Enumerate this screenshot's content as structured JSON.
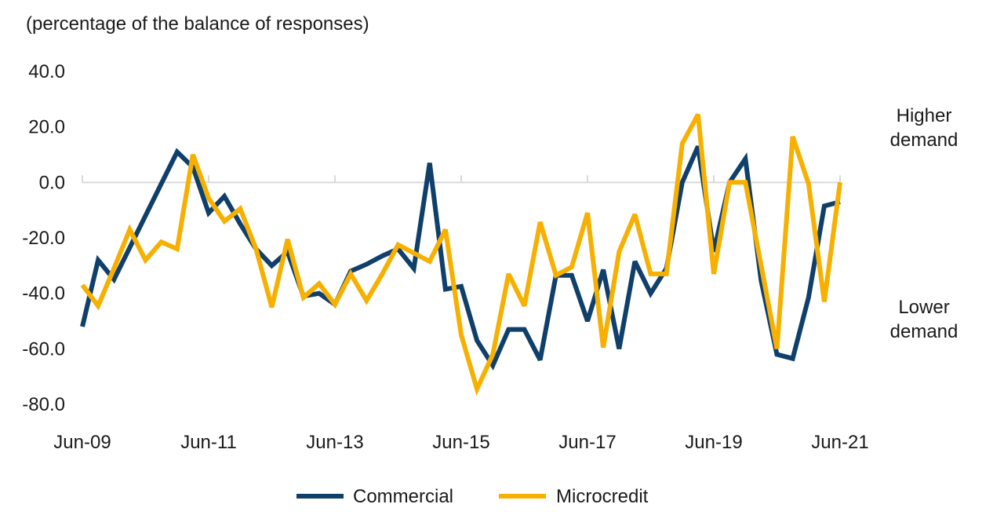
{
  "chart_data": {
    "type": "line",
    "title": "",
    "subtitle": "(percentage of the balance of responses)",
    "xlabel": "",
    "ylabel": "",
    "ylim": [
      -80,
      40
    ],
    "yticks": [
      40,
      20,
      0,
      -20,
      -40,
      -60,
      -80
    ],
    "ytick_labels": [
      "40.0",
      "20.0",
      "0.0",
      "-20.0",
      "-40.0",
      "-60.0",
      "-80.0"
    ],
    "xtick_labels": [
      "Jun-09",
      "Jun-11",
      "Jun-13",
      "Jun-15",
      "Jun-17",
      "Jun-19",
      "Jun-21"
    ],
    "x_frequency": "quarterly",
    "x_start": "Jun-09",
    "x_end": "Jun-21",
    "grid": false,
    "annotations": [
      {
        "lines": [
          "Higher",
          "demand"
        ]
      },
      {
        "lines": [
          "Lower",
          "demand"
        ]
      }
    ],
    "legend_position": "bottom",
    "series": [
      {
        "name": "Commercial",
        "color": "#0f3f6b",
        "values": [
          -52,
          -28,
          -35,
          -23.5,
          -12,
          -0.5,
          11,
          5.5,
          -11,
          -5,
          -15,
          -24,
          -30,
          -25,
          -41,
          -40,
          -44,
          -32,
          -29.5,
          -26.5,
          -24,
          -31,
          7,
          -38.5,
          -37.5,
          -57,
          -66,
          -53,
          -53,
          -64,
          -33.5,
          -33.5,
          -50,
          -31.5,
          -60,
          -28.5,
          -40,
          -31,
          0,
          13,
          -25,
          0,
          8.5,
          -35.5,
          -62,
          -63.5,
          -41.5,
          -8.5,
          -7
        ]
      },
      {
        "name": "Microcredit",
        "color": "#f7b000",
        "values": [
          -37,
          -44.5,
          -31,
          -17,
          -28,
          -21.5,
          -24,
          10,
          -5.7,
          -14,
          -9.5,
          -24,
          -45,
          -20.5,
          -41.5,
          -36.5,
          -44,
          -33,
          -42.6,
          -33,
          -22.5,
          -25.5,
          -28.5,
          -17,
          -55,
          -74.5,
          -62,
          -33,
          -44.5,
          -14.3,
          -33.5,
          -30.5,
          -11,
          -59.5,
          -25,
          -11.5,
          -33,
          -33,
          14,
          24.5,
          -33,
          0,
          0,
          -30,
          -60,
          16.5,
          -0.5,
          -43,
          0
        ]
      }
    ]
  }
}
